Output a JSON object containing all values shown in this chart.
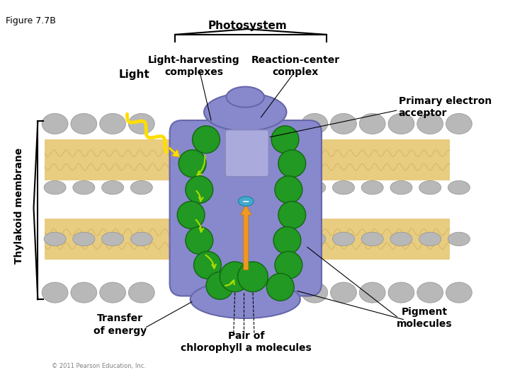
{
  "title": "Figure 7.7B",
  "photosystem_label": "Photosystem",
  "light_label": "Light",
  "lh_label": "Light-harvesting\ncomplexes",
  "rc_label": "Reaction-center\ncomplex",
  "primary_label": "Primary electron\nacceptor",
  "thylakoid_label": "Thylakoid membrane",
  "transfer_label": "Transfer\nof energy",
  "pair_label": "Pair of\nchlorophyll a molecules",
  "pigment_label": "Pigment\nmolecules",
  "bg_color": "#ffffff",
  "lipid_color": "#e8cc80",
  "lipid_line_color": "#c8a850",
  "gray_blob_color": "#b8b8b8",
  "gray_blob_edge": "#909090",
  "protein_complex_color": "#8888cc",
  "protein_complex_edge": "#6666aa",
  "rc_box_color": "#aaaadd",
  "rc_box_edge": "#8888bb",
  "green_color": "#229922",
  "green_edge": "#116611",
  "orange_arrow": "#ee9922",
  "electron_fill": "#44aacc",
  "yellow_wave": "#ffdd00",
  "transfer_arrow": "#aadd00",
  "label_fontsize": 10,
  "fig_width": 7.2,
  "fig_height": 5.4,
  "dpi": 100
}
